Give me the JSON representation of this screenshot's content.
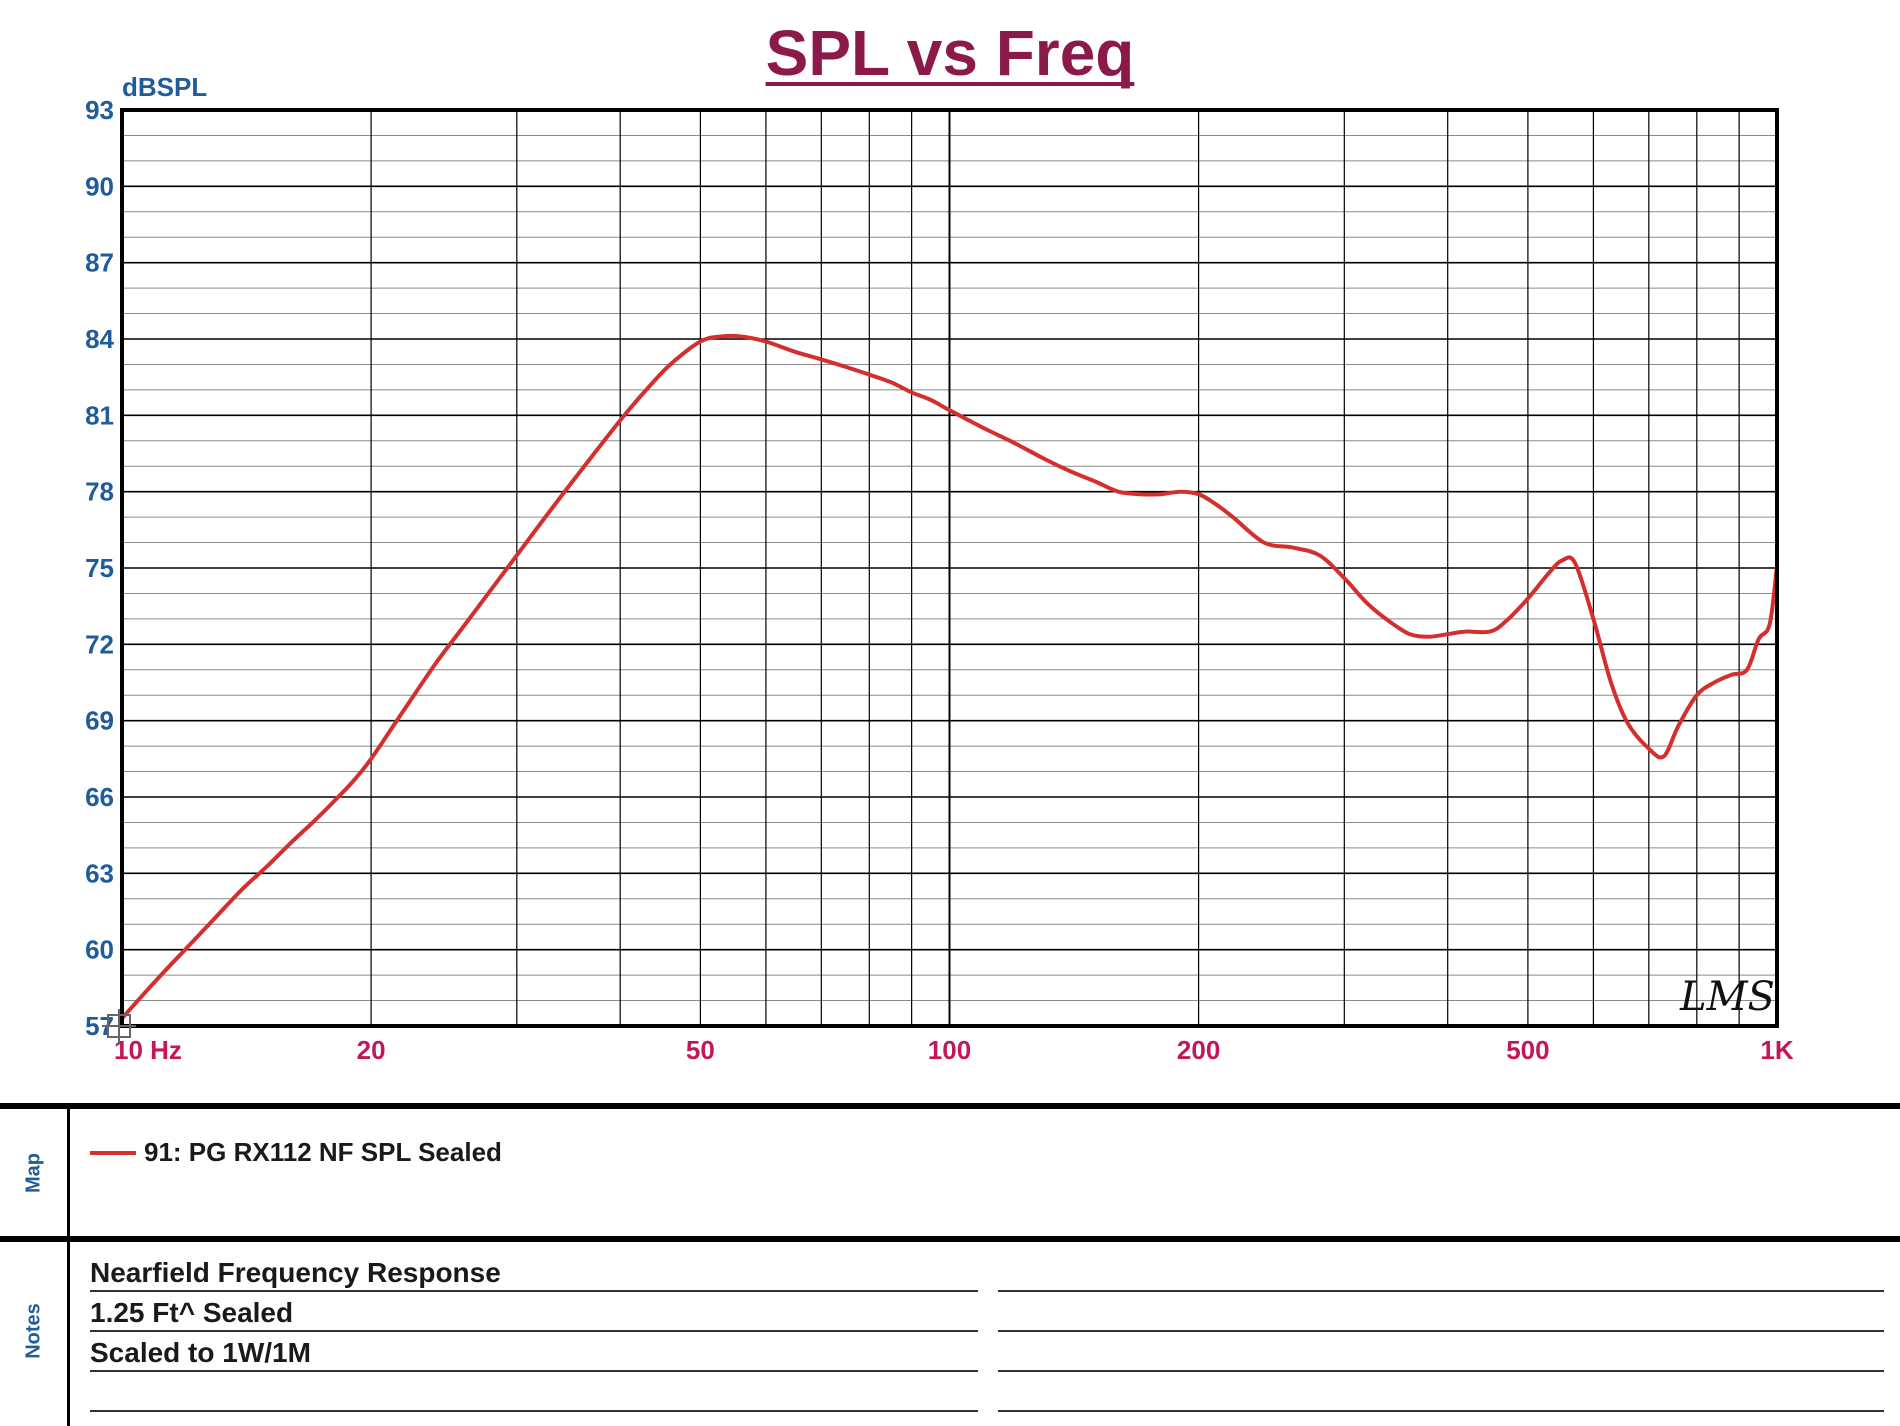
{
  "colors": {
    "title": "#8b1a4a",
    "y_tick": "#1f5c99",
    "x_tick": "#c2185b",
    "curve": "#d32f2f",
    "grid": "#000000",
    "watermark": "#111111"
  },
  "watermark": "LMS",
  "map_panel": {
    "side_label": "Map",
    "legend_label": "91: PG RX112 NF SPL Sealed"
  },
  "notes_panel": {
    "side_label": "Notes",
    "lines": [
      "Nearfield Frequency Response",
      "1.25 Ft^ Sealed",
      "Scaled to 1W/1M",
      ""
    ]
  },
  "chart_data": {
    "type": "line",
    "title": "SPL vs Freq",
    "xlabel": "",
    "ylabel": "dBSPL",
    "x_scale": "log",
    "xlim": [
      10,
      1000
    ],
    "ylim": [
      57,
      93
    ],
    "y_ticks": [
      93,
      90,
      87,
      84,
      81,
      78,
      75,
      72,
      69,
      66,
      63,
      60,
      57
    ],
    "x_ticks": [
      {
        "value": 10,
        "label": "10 Hz"
      },
      {
        "value": 20,
        "label": "20"
      },
      {
        "value": 50,
        "label": "50"
      },
      {
        "value": 100,
        "label": "100"
      },
      {
        "value": 200,
        "label": "200"
      },
      {
        "value": 500,
        "label": "500"
      },
      {
        "value": 1000,
        "label": "1K"
      }
    ],
    "grid": true,
    "series": [
      {
        "name": "91: PG RX112 NF SPL Sealed",
        "x": [
          10,
          11,
          12,
          13,
          14,
          15,
          16,
          17,
          18,
          19,
          20,
          22,
          24,
          26,
          28,
          30,
          33,
          36,
          40,
          43,
          46,
          50,
          53,
          56,
          60,
          65,
          70,
          75,
          80,
          85,
          90,
          95,
          100,
          110,
          120,
          130,
          140,
          150,
          160,
          170,
          180,
          190,
          200,
          210,
          220,
          240,
          260,
          280,
          300,
          320,
          340,
          360,
          380,
          400,
          420,
          450,
          470,
          500,
          530,
          550,
          570,
          600,
          630,
          660,
          700,
          730,
          760,
          800,
          840,
          880,
          920,
          950,
          980,
          1000
        ],
        "y": [
          57.3,
          58.8,
          60.1,
          61.3,
          62.4,
          63.3,
          64.2,
          65.0,
          65.8,
          66.6,
          67.5,
          69.5,
          71.3,
          72.8,
          74.2,
          75.5,
          77.3,
          78.9,
          80.8,
          82.0,
          83.0,
          83.9,
          84.1,
          84.1,
          83.9,
          83.5,
          83.2,
          82.9,
          82.6,
          82.3,
          81.9,
          81.6,
          81.2,
          80.5,
          79.9,
          79.3,
          78.8,
          78.4,
          78.0,
          77.9,
          77.9,
          78.0,
          77.9,
          77.5,
          77.0,
          76.0,
          75.8,
          75.5,
          74.6,
          73.6,
          72.9,
          72.4,
          72.3,
          72.4,
          72.5,
          72.5,
          72.9,
          73.8,
          74.8,
          75.3,
          75.2,
          73.0,
          70.5,
          68.9,
          67.9,
          67.6,
          68.8,
          70.0,
          70.5,
          70.8,
          71.0,
          72.2,
          72.8,
          75.1
        ]
      }
    ]
  }
}
